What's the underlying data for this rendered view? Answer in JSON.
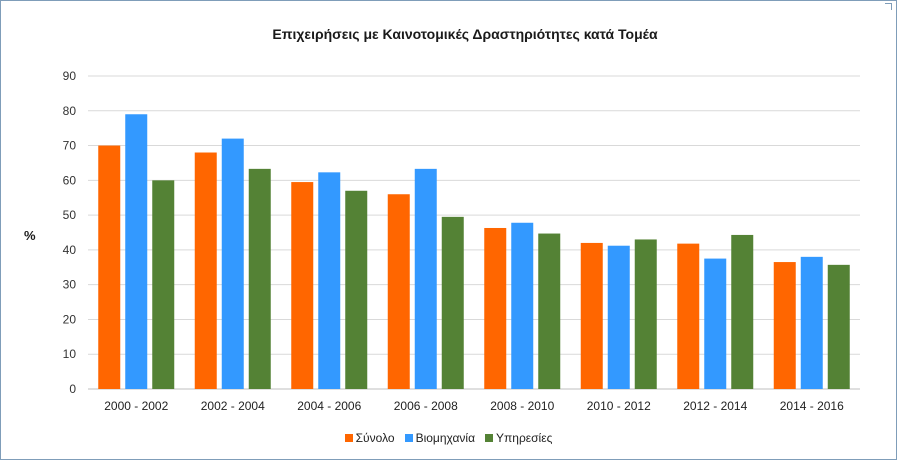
{
  "chart_data": {
    "type": "bar",
    "title": "Επιχειρήσεις με Καινοτομικές Δραστηριότητες κατά Τομέα",
    "xlabel": "",
    "ylabel": "%",
    "ylim": [
      0,
      90
    ],
    "yticks": [
      0,
      10,
      20,
      30,
      40,
      50,
      60,
      70,
      80,
      90
    ],
    "grid": true,
    "legend_position": "bottom",
    "categories": [
      "2000 - 2002",
      "2002 - 2004",
      "2004 - 2006",
      "2006 - 2008",
      "2008 - 2010",
      "2010 - 2012",
      "2012 - 2014",
      "2014 - 2016"
    ],
    "series": [
      {
        "name": "Σύνολο",
        "color": "#ff6600",
        "values": [
          70,
          68,
          59.5,
          56,
          46.3,
          42,
          41.8,
          36.5
        ]
      },
      {
        "name": "Βιομηχανία",
        "color": "#3399ff",
        "values": [
          79,
          72,
          62.3,
          63.3,
          47.8,
          41.2,
          37.5,
          38
        ]
      },
      {
        "name": "Υπηρεσίες",
        "color": "#548235",
        "values": [
          60,
          63.3,
          57,
          49.5,
          44.7,
          43,
          44.3,
          35.7
        ]
      }
    ]
  }
}
